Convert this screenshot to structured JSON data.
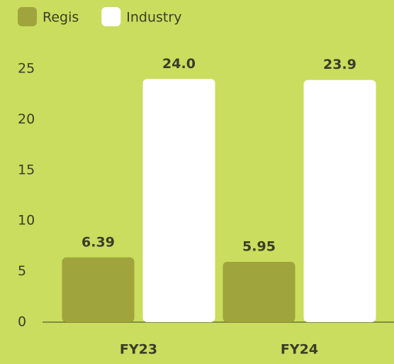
{
  "chart_data": {
    "type": "bar",
    "categories": [
      "FY23",
      "FY24"
    ],
    "series": [
      {
        "name": "Regis",
        "color": "#9fa43c",
        "values": [
          6.39,
          5.95
        ],
        "value_labels": [
          "6.39",
          "5.95"
        ]
      },
      {
        "name": "Industry",
        "color": "#ffffff",
        "values": [
          24.0,
          23.9
        ],
        "value_labels": [
          "24.0",
          "23.9"
        ]
      }
    ],
    "ylim": [
      0,
      25
    ],
    "yticks": [
      0,
      5,
      10,
      15,
      20,
      25
    ],
    "grid": false,
    "legend": "top-left"
  }
}
